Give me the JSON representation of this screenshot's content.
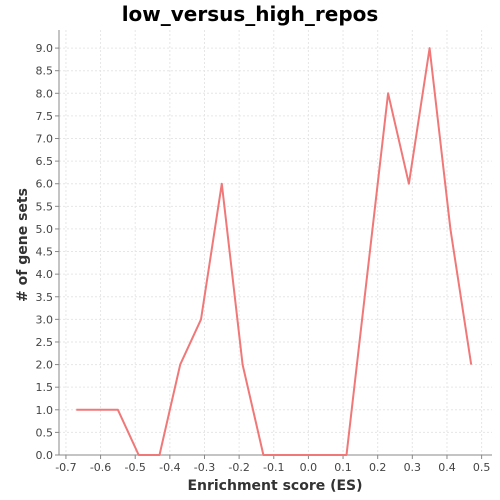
{
  "chart_data": {
    "type": "line",
    "title": "low_versus_high_repos",
    "xlabel": "Enrichment score (ES)",
    "ylabel": "# of gene sets",
    "xlim": [
      -0.72,
      0.53
    ],
    "ylim": [
      0,
      9.4
    ],
    "x_ticks": [
      "-0.7",
      "-0.6",
      "-0.5",
      "-0.4",
      "-0.3",
      "-0.2",
      "-0.1",
      "0.0",
      "0.1",
      "0.2",
      "0.3",
      "0.4",
      "0.5"
    ],
    "y_ticks": [
      "0.0",
      "0.5",
      "1.0",
      "1.5",
      "2.0",
      "2.5",
      "3.0",
      "3.5",
      "4.0",
      "4.5",
      "5.0",
      "5.5",
      "6.0",
      "6.5",
      "7.0",
      "7.5",
      "8.0",
      "8.5",
      "9.0"
    ],
    "grid": true,
    "series": [
      {
        "name": "",
        "color": "#f07878",
        "x": [
          -0.67,
          -0.61,
          -0.55,
          -0.49,
          -0.43,
          -0.37,
          -0.31,
          -0.25,
          -0.19,
          -0.13,
          -0.07,
          -0.01,
          0.05,
          0.11,
          0.17,
          0.23,
          0.29,
          0.35,
          0.41,
          0.47
        ],
        "y": [
          1,
          1,
          1,
          0,
          0,
          2,
          3,
          6,
          2,
          0,
          0,
          0,
          0,
          0,
          4,
          8,
          6,
          9,
          5,
          2
        ]
      }
    ]
  }
}
